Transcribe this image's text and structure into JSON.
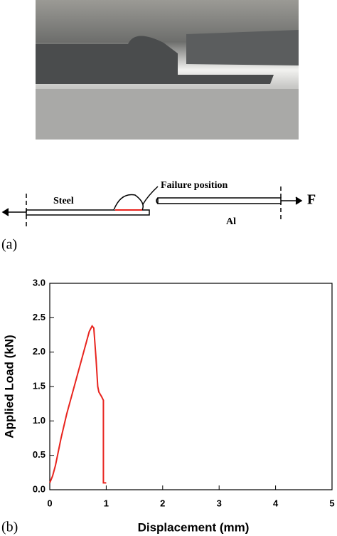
{
  "diagram": {
    "steel": "Steel",
    "failure_position": "Failure position",
    "force": "F",
    "aluminum": "Al",
    "panel_label": "(a)"
  },
  "chart_data": {
    "type": "line",
    "panel_label": "(b)",
    "x_label": "Displacement (mm)",
    "y_label": "Applied Load (kN)",
    "x": [
      0.0,
      0.05,
      0.1,
      0.2,
      0.3,
      0.4,
      0.5,
      0.6,
      0.7,
      0.75,
      0.78,
      0.82,
      0.85,
      0.87,
      0.92,
      0.95,
      0.95,
      1.0
    ],
    "values": [
      0.1,
      0.2,
      0.35,
      0.75,
      1.1,
      1.4,
      1.7,
      2.0,
      2.3,
      2.38,
      2.35,
      1.9,
      1.5,
      1.42,
      1.35,
      1.3,
      0.1,
      0.1
    ],
    "color": "#e8241e",
    "xlim": [
      0,
      5
    ],
    "ylim": [
      0,
      3
    ],
    "xticks": [
      0,
      1,
      2,
      3,
      4,
      5
    ],
    "yticks": [
      {
        "value": 0,
        "label": "0.0"
      },
      0.5,
      {
        "value": 1,
        "label": "1.0"
      },
      1.5,
      {
        "value": 2,
        "label": "2.0"
      },
      2.5,
      {
        "value": 3,
        "label": "3.0"
      }
    ]
  }
}
